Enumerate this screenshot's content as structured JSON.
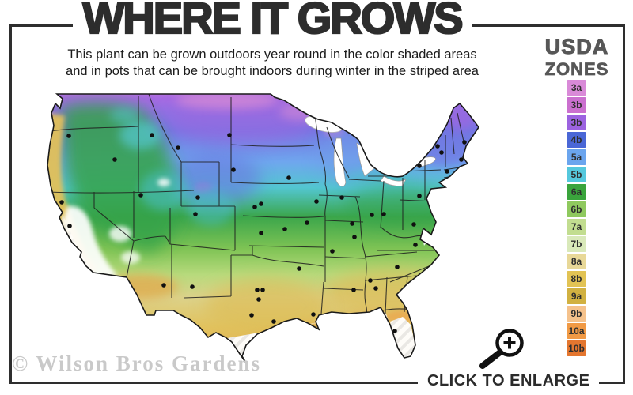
{
  "header": {
    "title": "WHERE IT GROWS",
    "subtitle_line1": "This plant can be grown outdoors year round in the color shaded areas",
    "subtitle_line2": "and in pots that can be brought indoors during winter in the striped area"
  },
  "legend": {
    "title_line1": "USDA",
    "title_line2": "ZONES",
    "zones": [
      {
        "label": "3a",
        "color": "#d98ad8"
      },
      {
        "label": "3b",
        "color": "#cb70cf"
      },
      {
        "label": "3b",
        "color": "#9c63e0"
      },
      {
        "label": "4b",
        "color": "#4a67d6"
      },
      {
        "label": "5a",
        "color": "#6ba5ee"
      },
      {
        "label": "5b",
        "color": "#55c8dd"
      },
      {
        "label": "6a",
        "color": "#3aa43c"
      },
      {
        "label": "6b",
        "color": "#8fc95e"
      },
      {
        "label": "7a",
        "color": "#c2dd90"
      },
      {
        "label": "7b",
        "color": "#d9e9ba"
      },
      {
        "label": "8a",
        "color": "#e8d898"
      },
      {
        "label": "8b",
        "color": "#e2c354"
      },
      {
        "label": "9a",
        "color": "#d1b141"
      },
      {
        "label": "9b",
        "color": "#f5c28c"
      },
      {
        "label": "10a",
        "color": "#f19a45"
      },
      {
        "label": "10b",
        "color": "#e4762f"
      }
    ]
  },
  "footer": {
    "watermark": "© Wilson Bros Gardens",
    "click_to_enlarge": "CLICK TO ENLARGE",
    "zoom_icon": "magnifier-plus-icon"
  },
  "map": {
    "description": "USDA hardiness zone map of contiguous United States",
    "tiny_credit": "USDA",
    "border_color": "#2e2e2e"
  }
}
